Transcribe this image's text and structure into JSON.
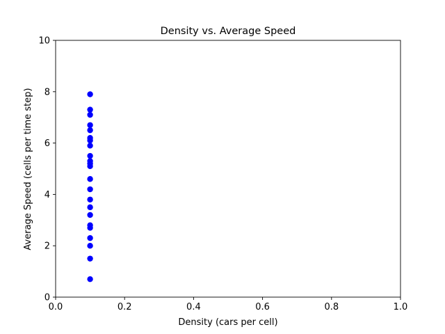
{
  "chart_data": {
    "type": "scatter",
    "title": "Density vs. Average Speed",
    "xlabel": "Density (cars per cell)",
    "ylabel": "Average Speed (cells per time step)",
    "xlim": [
      0.0,
      1.0
    ],
    "ylim": [
      0,
      10
    ],
    "xticks": [
      "0.0",
      "0.2",
      "0.4",
      "0.6",
      "0.8",
      "1.0"
    ],
    "yticks": [
      "0",
      "2",
      "4",
      "6",
      "8",
      "10"
    ],
    "grid": false,
    "marker_color": "#0000ff",
    "points": [
      {
        "x": 0.1,
        "y": 7.9
      },
      {
        "x": 0.1,
        "y": 7.3
      },
      {
        "x": 0.1,
        "y": 7.1
      },
      {
        "x": 0.1,
        "y": 6.7
      },
      {
        "x": 0.1,
        "y": 6.5
      },
      {
        "x": 0.1,
        "y": 6.2
      },
      {
        "x": 0.1,
        "y": 6.1
      },
      {
        "x": 0.1,
        "y": 5.9
      },
      {
        "x": 0.1,
        "y": 5.5
      },
      {
        "x": 0.1,
        "y": 5.3
      },
      {
        "x": 0.1,
        "y": 5.2
      },
      {
        "x": 0.1,
        "y": 5.1
      },
      {
        "x": 0.1,
        "y": 4.6
      },
      {
        "x": 0.1,
        "y": 4.2
      },
      {
        "x": 0.1,
        "y": 3.8
      },
      {
        "x": 0.1,
        "y": 3.5
      },
      {
        "x": 0.1,
        "y": 3.2
      },
      {
        "x": 0.1,
        "y": 2.8
      },
      {
        "x": 0.1,
        "y": 2.7
      },
      {
        "x": 0.1,
        "y": 2.3
      },
      {
        "x": 0.1,
        "y": 2.0
      },
      {
        "x": 0.1,
        "y": 1.5
      },
      {
        "x": 0.1,
        "y": 0.7
      }
    ]
  }
}
